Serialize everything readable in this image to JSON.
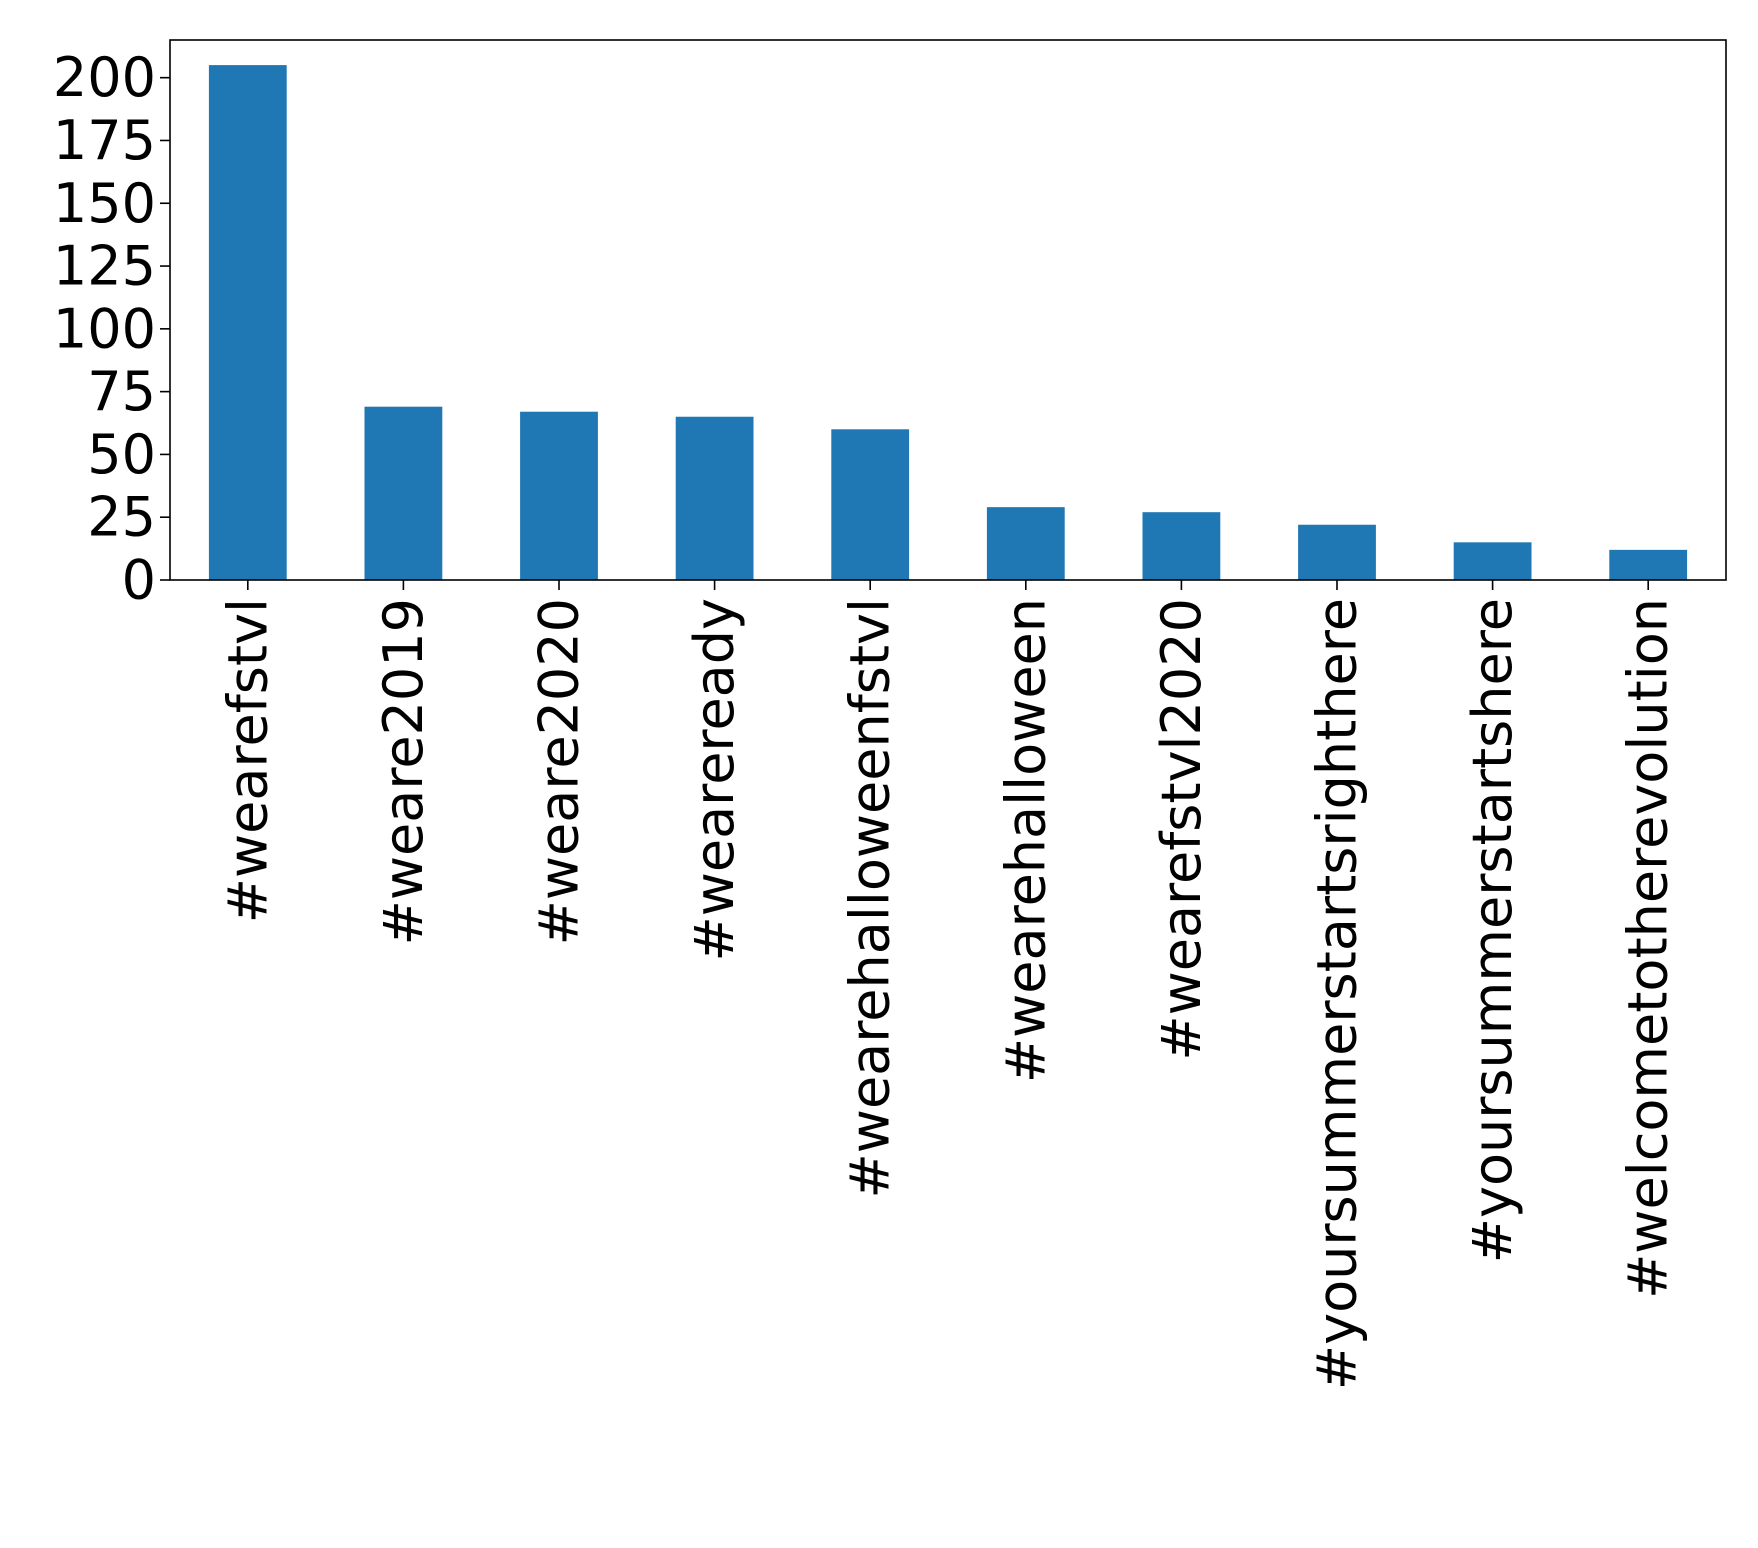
{
  "chart_data": {
    "type": "bar",
    "title": "",
    "xlabel": "",
    "ylabel": "",
    "categories": [
      "#wearefstvl",
      "#weare2019",
      "#weare2020",
      "#weareready",
      "#wearehalloweenfstvl",
      "#wearehalloween",
      "#wearefstvl2020",
      "#yoursummerstartsrighthere",
      "#yoursummerstartshere",
      "#welcometotherevolution"
    ],
    "values": [
      205,
      69,
      67,
      65,
      60,
      29,
      27,
      22,
      15,
      12
    ],
    "ylim": [
      0,
      215
    ],
    "yticks": [
      "0",
      "25",
      "50",
      "75",
      "100",
      "125",
      "150",
      "175",
      "200"
    ],
    "bar_color": "#1f77b4",
    "grid": false,
    "legend": "none"
  }
}
